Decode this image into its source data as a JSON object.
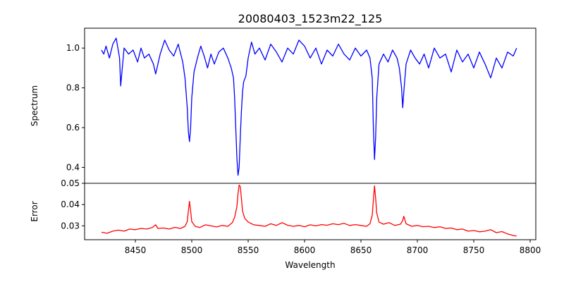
{
  "chart_data": {
    "type": "line",
    "title": "20080403_1523m22_125",
    "xlabel": "Wavelength",
    "x_ticks": [
      8450,
      8500,
      8550,
      8600,
      8650,
      8700,
      8750,
      8800
    ],
    "x_range": [
      8405,
      8805
    ],
    "grid": false,
    "legend": "none",
    "panels": [
      {
        "name": "spectrum",
        "ylabel": "Spectrum",
        "ylim": [
          0.32,
          1.1
        ],
        "y_ticks": [
          0.4,
          0.6,
          0.8,
          1.0
        ],
        "y_tick_labels": [
          "0.4",
          "0.6",
          "0.8",
          "1.0"
        ],
        "color": "#0000ff",
        "x": [
          8420,
          8422,
          8424,
          8427,
          8430,
          8433,
          8436,
          8437,
          8440,
          8444,
          8448,
          8452,
          8455,
          8458,
          8462,
          8466,
          8468,
          8472,
          8476,
          8480,
          8484,
          8488,
          8492,
          8494,
          8496,
          8497,
          8498,
          8499,
          8500,
          8502,
          8505,
          8508,
          8511,
          8514,
          8517,
          8520,
          8524,
          8528,
          8532,
          8535,
          8537,
          8538,
          8539,
          8540,
          8541,
          8542,
          8543,
          8544,
          8545,
          8546,
          8548,
          8550,
          8553,
          8556,
          8560,
          8565,
          8570,
          8575,
          8580,
          8585,
          8590,
          8595,
          8600,
          8605,
          8610,
          8615,
          8620,
          8625,
          8630,
          8635,
          8640,
          8645,
          8650,
          8655,
          8658,
          8660,
          8661,
          8662,
          8663,
          8664,
          8666,
          8670,
          8674,
          8678,
          8682,
          8684,
          8686,
          8687,
          8688,
          8690,
          8694,
          8698,
          8702,
          8706,
          8710,
          8715,
          8720,
          8725,
          8730,
          8735,
          8740,
          8745,
          8750,
          8755,
          8760,
          8765,
          8770,
          8775,
          8780,
          8785,
          8788
        ],
        "values": [
          0.99,
          0.97,
          1.01,
          0.95,
          1.02,
          1.05,
          0.95,
          0.81,
          1.0,
          0.97,
          0.99,
          0.93,
          1.0,
          0.95,
          0.97,
          0.92,
          0.87,
          0.97,
          1.04,
          0.99,
          0.96,
          1.02,
          0.93,
          0.85,
          0.7,
          0.58,
          0.53,
          0.6,
          0.75,
          0.88,
          0.95,
          1.01,
          0.96,
          0.9,
          0.97,
          0.92,
          0.98,
          1.0,
          0.95,
          0.9,
          0.85,
          0.75,
          0.6,
          0.45,
          0.36,
          0.4,
          0.55,
          0.68,
          0.78,
          0.83,
          0.86,
          0.95,
          1.03,
          0.97,
          1.0,
          0.94,
          1.02,
          0.98,
          0.93,
          1.0,
          0.97,
          1.04,
          1.01,
          0.95,
          1.0,
          0.92,
          0.99,
          0.96,
          1.02,
          0.97,
          0.94,
          1.0,
          0.96,
          0.99,
          0.95,
          0.85,
          0.6,
          0.44,
          0.55,
          0.75,
          0.92,
          0.97,
          0.93,
          0.99,
          0.95,
          0.9,
          0.8,
          0.7,
          0.78,
          0.92,
          0.99,
          0.95,
          0.92,
          0.97,
          0.9,
          1.0,
          0.95,
          0.97,
          0.88,
          0.99,
          0.93,
          0.97,
          0.9,
          0.98,
          0.92,
          0.85,
          0.95,
          0.9,
          0.98,
          0.96,
          1.0
        ]
      },
      {
        "name": "error",
        "ylabel": "Error",
        "ylim": [
          0.0235,
          0.05
        ],
        "y_ticks": [
          0.03,
          0.04,
          0.05
        ],
        "y_tick_labels": [
          "0.03",
          "0.04",
          "0.05"
        ],
        "color": "#ff0000",
        "x": [
          8420,
          8425,
          8430,
          8435,
          8440,
          8445,
          8450,
          8455,
          8460,
          8465,
          8468,
          8470,
          8475,
          8480,
          8485,
          8490,
          8494,
          8496,
          8497,
          8498,
          8499,
          8500,
          8503,
          8507,
          8512,
          8517,
          8522,
          8527,
          8532,
          8536,
          8538,
          8540,
          8541,
          8542,
          8543,
          8544,
          8545,
          8547,
          8550,
          8555,
          8560,
          8565,
          8570,
          8575,
          8580,
          8585,
          8590,
          8595,
          8600,
          8605,
          8610,
          8615,
          8620,
          8625,
          8630,
          8635,
          8640,
          8645,
          8650,
          8655,
          8658,
          8660,
          8661,
          8662,
          8663,
          8664,
          8666,
          8670,
          8675,
          8680,
          8685,
          8687,
          8688,
          8690,
          8695,
          8700,
          8705,
          8710,
          8715,
          8720,
          8725,
          8730,
          8735,
          8740,
          8745,
          8750,
          8755,
          8760,
          8765,
          8770,
          8775,
          8780,
          8785,
          8788
        ],
        "values": [
          0.027,
          0.0265,
          0.0275,
          0.028,
          0.0275,
          0.0285,
          0.0282,
          0.0288,
          0.0285,
          0.0292,
          0.0305,
          0.0288,
          0.029,
          0.0285,
          0.0293,
          0.0288,
          0.0298,
          0.032,
          0.037,
          0.0415,
          0.037,
          0.032,
          0.0298,
          0.0292,
          0.0305,
          0.03,
          0.0295,
          0.0302,
          0.0298,
          0.0315,
          0.034,
          0.039,
          0.045,
          0.0492,
          0.0485,
          0.043,
          0.037,
          0.0335,
          0.0318,
          0.0305,
          0.0302,
          0.0298,
          0.031,
          0.0302,
          0.0315,
          0.0303,
          0.0298,
          0.0302,
          0.0296,
          0.0305,
          0.03,
          0.0306,
          0.0303,
          0.031,
          0.0306,
          0.0312,
          0.0302,
          0.0306,
          0.0302,
          0.0298,
          0.031,
          0.035,
          0.042,
          0.0488,
          0.043,
          0.036,
          0.0318,
          0.0308,
          0.0315,
          0.0302,
          0.0308,
          0.0325,
          0.0345,
          0.031,
          0.0298,
          0.0302,
          0.0296,
          0.0298,
          0.0292,
          0.0296,
          0.0288,
          0.029,
          0.0282,
          0.0285,
          0.0275,
          0.0278,
          0.0272,
          0.0275,
          0.0282,
          0.0268,
          0.0273,
          0.0262,
          0.0255,
          0.0252
        ]
      }
    ]
  }
}
